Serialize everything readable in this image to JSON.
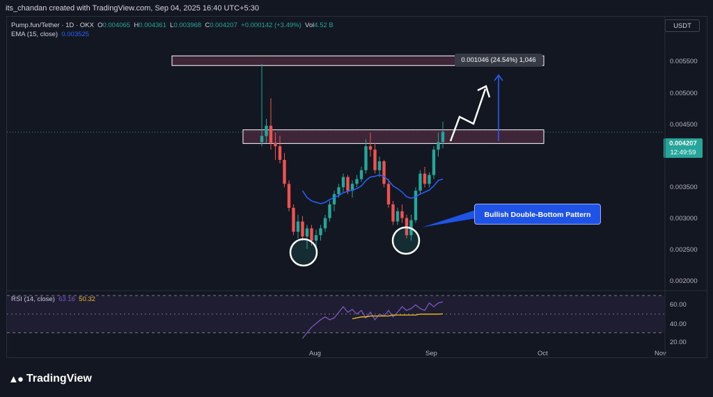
{
  "header": {
    "text": "its_chandan created with TradingView.com, Sep 04, 2025 16:40 UTC+5:30"
  },
  "legend": {
    "symbol": "Pump.fun/Tether · 1D · OKX",
    "o_label": "O",
    "o": "0.004065",
    "h_label": "H",
    "h": "0.004361",
    "l_label": "L",
    "l": "0.003968",
    "c_label": "C",
    "c": "0.004207",
    "chg": "+0.000142 (+3.49%)",
    "vol_label": "Vol",
    "vol": "4.52 B",
    "ema_label": "EMA (15, close)",
    "ema": "0.003525"
  },
  "currency": "USDT",
  "y_ticks": [
    "0.005500",
    "0.005000",
    "0.004500",
    "0.004000",
    "0.003500",
    "0.003000",
    "0.002500",
    "0.002000"
  ],
  "price_label": {
    "value": "0.004207",
    "timer": "12:49:59"
  },
  "x_ticks": [
    "Aug",
    "Sep",
    "Oct",
    "Nov"
  ],
  "measure": "0.001046 (24.54%) 1,046",
  "callout": "Bullish Double-Bottom Pattern",
  "rsi": {
    "label": "RSI (14, close)",
    "value": "63.16",
    "ma": "50.32",
    "ticks": [
      "60.00",
      "40.00",
      "20.00"
    ]
  },
  "colors": {
    "bg": "#131722",
    "up": "#26a69a",
    "down": "#ef5350",
    "ema": "#2962ff",
    "rsi": "#7e57c2",
    "rsi_ma": "#f5c518",
    "zone": "#4a2a3e"
  },
  "logo": {
    "name": "TradingView",
    "icon": "tradingview-logo-icon"
  },
  "chart_data": {
    "type": "candlestick",
    "ylim": [
      0.0019,
      0.0057
    ],
    "candles": [
      [
        0.00406,
        0.0052,
        0.004,
        0.00415
      ],
      [
        0.00415,
        0.0044,
        0.00405,
        0.0043
      ],
      [
        0.0043,
        0.0047,
        0.00395,
        0.00405
      ],
      [
        0.00405,
        0.0042,
        0.0038,
        0.004
      ],
      [
        0.004,
        0.00415,
        0.00375,
        0.0038
      ],
      [
        0.0038,
        0.0039,
        0.0034,
        0.00345
      ],
      [
        0.00345,
        0.0035,
        0.00305,
        0.0031
      ],
      [
        0.0031,
        0.00315,
        0.0027,
        0.00275
      ],
      [
        0.00275,
        0.003,
        0.00265,
        0.0029
      ],
      [
        0.0029,
        0.00298,
        0.00262,
        0.00268
      ],
      [
        0.00268,
        0.00285,
        0.0025,
        0.0028
      ],
      [
        0.0028,
        0.00285,
        0.00255,
        0.00262
      ],
      [
        0.00262,
        0.00278,
        0.0025,
        0.0027
      ],
      [
        0.0027,
        0.00285,
        0.00262,
        0.0028
      ],
      [
        0.0028,
        0.003,
        0.00275,
        0.00295
      ],
      [
        0.00295,
        0.0032,
        0.0029,
        0.00315
      ],
      [
        0.00315,
        0.00335,
        0.00305,
        0.0033
      ],
      [
        0.0033,
        0.00345,
        0.00325,
        0.0034
      ],
      [
        0.0034,
        0.0036,
        0.00333,
        0.00355
      ],
      [
        0.00355,
        0.00358,
        0.0033,
        0.00335
      ],
      [
        0.00335,
        0.0035,
        0.00325,
        0.00345
      ],
      [
        0.00345,
        0.00358,
        0.0034,
        0.00352
      ],
      [
        0.00352,
        0.0037,
        0.00348,
        0.00365
      ],
      [
        0.00365,
        0.0041,
        0.0036,
        0.004
      ],
      [
        0.004,
        0.0042,
        0.00385,
        0.00395
      ],
      [
        0.00395,
        0.00405,
        0.0036,
        0.00365
      ],
      [
        0.00365,
        0.00385,
        0.00355,
        0.00378
      ],
      [
        0.00378,
        0.0038,
        0.0034,
        0.00345
      ],
      [
        0.00345,
        0.00352,
        0.0031,
        0.00315
      ],
      [
        0.00315,
        0.0032,
        0.00285,
        0.0029
      ],
      [
        0.0029,
        0.0031,
        0.00285,
        0.00305
      ],
      [
        0.00305,
        0.00315,
        0.00288,
        0.00295
      ],
      [
        0.00295,
        0.003,
        0.00265,
        0.0027
      ],
      [
        0.0027,
        0.003,
        0.00262,
        0.00292
      ],
      [
        0.00292,
        0.0034,
        0.00288,
        0.00335
      ],
      [
        0.00335,
        0.00365,
        0.0033,
        0.0036
      ],
      [
        0.0036,
        0.0037,
        0.0034,
        0.00345
      ],
      [
        0.00345,
        0.00362,
        0.0034,
        0.00358
      ],
      [
        0.00358,
        0.004,
        0.00352,
        0.00395
      ],
      [
        0.00395,
        0.0042,
        0.00385,
        0.00406
      ],
      [
        0.00406,
        0.00436,
        0.00397,
        0.00421
      ]
    ],
    "ema": [
      null,
      null,
      null,
      null,
      null,
      null,
      null,
      null,
      null,
      0.00335,
      0.00325,
      0.0032,
      0.00318,
      0.00316,
      0.00318,
      0.00322,
      0.00325,
      0.00328,
      0.00332,
      0.00334,
      0.00336,
      0.00338,
      0.00342,
      0.0035,
      0.00355,
      0.00356,
      0.00358,
      0.00356,
      0.0035,
      0.00342,
      0.00338,
      0.00333,
      0.00326,
      0.00324,
      0.00326,
      0.0033,
      0.00333,
      0.00336,
      0.00342,
      0.0035,
      0.00352
    ],
    "rsi": [
      null,
      null,
      null,
      null,
      null,
      null,
      null,
      null,
      null,
      24,
      30,
      36,
      40,
      44,
      47,
      44,
      46,
      52,
      58,
      52,
      55,
      50,
      54,
      46,
      52,
      44,
      50,
      48,
      54,
      47,
      52,
      58,
      54,
      56,
      60,
      56,
      54,
      62,
      58,
      62,
      63.16
    ],
    "rsi_ma": [
      null,
      null,
      null,
      null,
      null,
      null,
      null,
      null,
      null,
      null,
      null,
      null,
      null,
      null,
      null,
      null,
      null,
      null,
      null,
      null,
      45,
      46,
      47,
      47,
      48,
      48,
      48,
      48,
      48,
      49,
      49,
      49,
      49,
      49,
      49,
      50,
      50,
      50,
      50,
      50,
      50.32
    ],
    "support_zone": [
      0.00404,
      0.00424
    ],
    "target_zone": [
      0.00522,
      0.0053
    ],
    "measure_delta": 0.001046
  }
}
